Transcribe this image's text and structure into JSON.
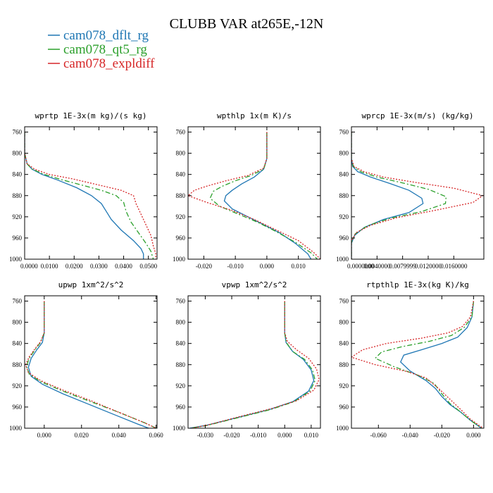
{
  "title": "CLUBB VAR at265E,-12N",
  "legend": [
    {
      "label": "cam078_dflt_rg",
      "color": "#1f77b4",
      "dash": "solid"
    },
    {
      "label": "cam078_qt5_rg",
      "color": "#2ca02c",
      "dash": "dashdot"
    },
    {
      "label": "cam078_expldiff",
      "color": "#d62728",
      "dash": "dotted"
    }
  ],
  "chart_data": [
    {
      "type": "line",
      "title": "wprtp  1E-3x(m kg)/(s kg)",
      "xlim": [
        0,
        0.0535
      ],
      "ylim": [
        750,
        1000
      ],
      "y_inverted": true,
      "xticks": [
        0,
        0.01,
        0.02,
        0.03,
        0.04,
        0.05
      ],
      "xtick_labels": [
        "0.0000",
        "0.0100",
        "0.0200",
        "0.0300",
        "0.0400",
        "0.0500"
      ],
      "yticks": [
        760,
        800,
        840,
        880,
        920,
        960,
        1000
      ],
      "ytick_labels": [
        "760",
        "800",
        "840",
        "880",
        "920",
        "960",
        "1000"
      ],
      "series": [
        {
          "name": "cam078_dflt_rg",
          "x": [
            0,
            0,
            0.001,
            0.003,
            0.007,
            0.013,
            0.021,
            0.027,
            0.031,
            0.033,
            0.035,
            0.039,
            0.044,
            0.047,
            0.048,
            0.048
          ],
          "y": [
            760,
            800,
            820,
            830,
            840,
            850,
            865,
            880,
            895,
            910,
            925,
            945,
            965,
            980,
            990,
            1000
          ]
        },
        {
          "name": "cam078_qt5_rg",
          "x": [
            0,
            0,
            0.001,
            0.003,
            0.008,
            0.015,
            0.023,
            0.031,
            0.037,
            0.04,
            0.041,
            0.043,
            0.046,
            0.049,
            0.051,
            0.052
          ],
          "y": [
            760,
            800,
            820,
            830,
            840,
            850,
            860,
            870,
            880,
            893,
            910,
            930,
            950,
            970,
            985,
            1000
          ]
        },
        {
          "name": "cam078_expldiff",
          "x": [
            0,
            0,
            0.001,
            0.004,
            0.01,
            0.019,
            0.03,
            0.039,
            0.044,
            0.045,
            0.047,
            0.049,
            0.051,
            0.052,
            0.053,
            0.053
          ],
          "y": [
            760,
            800,
            820,
            830,
            840,
            848,
            860,
            870,
            880,
            895,
            915,
            935,
            955,
            975,
            990,
            1000
          ]
        }
      ]
    },
    {
      "type": "line",
      "title": "wpthlp  1x(m K)/s",
      "xlim": [
        -0.025,
        0.017
      ],
      "ylim": [
        750,
        1000
      ],
      "y_inverted": true,
      "xticks": [
        -0.02,
        -0.01,
        0,
        0.01
      ],
      "xtick_labels": [
        "-0.020",
        "-0.010",
        "0.000",
        "0.010"
      ],
      "yticks": [
        760,
        800,
        840,
        880,
        920,
        960,
        1000
      ],
      "ytick_labels": [
        "760",
        "800",
        "840",
        "880",
        "920",
        "960",
        "1000"
      ],
      "series": [
        {
          "name": "cam078_dflt_rg",
          "x": [
            0,
            0,
            -0.001,
            -0.004,
            -0.008,
            -0.011,
            -0.013,
            -0.0135,
            -0.011,
            -0.006,
            -0.001,
            0.004,
            0.009,
            0.013,
            0.014
          ],
          "y": [
            760,
            810,
            830,
            845,
            858,
            870,
            880,
            890,
            905,
            920,
            935,
            950,
            970,
            990,
            1000
          ]
        },
        {
          "name": "cam078_qt5_rg",
          "x": [
            0,
            0,
            -0.001,
            -0.005,
            -0.01,
            -0.014,
            -0.017,
            -0.018,
            -0.015,
            -0.009,
            -0.003,
            0.003,
            0.009,
            0.014,
            0.016
          ],
          "y": [
            760,
            810,
            830,
            842,
            852,
            862,
            872,
            885,
            900,
            915,
            930,
            948,
            968,
            988,
            1000
          ]
        },
        {
          "name": "cam078_expldiff",
          "x": [
            0,
            0,
            -0.001,
            -0.006,
            -0.013,
            -0.019,
            -0.023,
            -0.025,
            -0.019,
            -0.011,
            -0.004,
            0.003,
            0.01,
            0.015,
            0.017
          ],
          "y": [
            760,
            810,
            828,
            842,
            852,
            862,
            870,
            880,
            893,
            908,
            925,
            945,
            965,
            988,
            1000
          ]
        }
      ]
    },
    {
      "type": "line",
      "title": "wprcp  1E-3x(m/s) (kg/kg)",
      "xlim": [
        0,
        0.0207
      ],
      "ylim": [
        750,
        1000
      ],
      "y_inverted": true,
      "xticks": [
        0,
        0.004,
        0.008,
        0.012,
        0.016
      ],
      "xtick_labels": [
        "0.0000000",
        "0.0040000",
        "0.0079999",
        "0.0120000",
        "0.0160000"
      ],
      "yticks": [
        760,
        800,
        840,
        880,
        920,
        960,
        1000
      ],
      "ytick_labels": [
        "760",
        "800",
        "840",
        "880",
        "920",
        "960",
        "1000"
      ],
      "series": [
        {
          "name": "cam078_dflt_rg",
          "x": [
            0,
            0,
            0.0002,
            0.001,
            0.003,
            0.006,
            0.009,
            0.011,
            0.0112,
            0.009,
            0.005,
            0.002,
            0.0005,
            0,
            0
          ],
          "y": [
            760,
            810,
            825,
            835,
            845,
            857,
            870,
            885,
            895,
            912,
            925,
            940,
            955,
            970,
            1000
          ]
        },
        {
          "name": "cam078_qt5_rg",
          "x": [
            0,
            0,
            0.0003,
            0.0015,
            0.004,
            0.008,
            0.012,
            0.0148,
            0.0147,
            0.011,
            0.006,
            0.0025,
            0.0006,
            0,
            0
          ],
          "y": [
            760,
            810,
            825,
            835,
            845,
            856,
            868,
            882,
            895,
            910,
            923,
            937,
            952,
            968,
            1000
          ]
        },
        {
          "name": "cam078_expldiff",
          "x": [
            0,
            0,
            0.0004,
            0.002,
            0.005,
            0.01,
            0.016,
            0.0205,
            0.019,
            0.013,
            0.007,
            0.003,
            0.0007,
            0,
            0
          ],
          "y": [
            760,
            810,
            825,
            835,
            845,
            855,
            866,
            880,
            893,
            908,
            922,
            936,
            950,
            966,
            1000
          ]
        }
      ]
    },
    {
      "type": "line",
      "title": "upwp  1xm^2/s^2",
      "xlim": [
        -0.0105,
        0.0605
      ],
      "ylim": [
        750,
        1000
      ],
      "y_inverted": true,
      "xticks": [
        0,
        0.02,
        0.04,
        0.06
      ],
      "xtick_labels": [
        "0.000",
        "0.020",
        "0.040",
        "0.060"
      ],
      "yticks": [
        760,
        800,
        840,
        880,
        920,
        960,
        1000
      ],
      "ytick_labels": [
        "760",
        "800",
        "840",
        "880",
        "920",
        "960",
        "1000"
      ],
      "series": [
        {
          "name": "cam078_dflt_rg",
          "x": [
            0,
            0,
            -0.001,
            -0.004,
            -0.007,
            -0.0085,
            -0.007,
            -0.001,
            0.01,
            0.024,
            0.038,
            0.05,
            0.056
          ],
          "y": [
            760,
            820,
            838,
            852,
            868,
            885,
            902,
            917,
            935,
            955,
            975,
            992,
            1000
          ]
        },
        {
          "name": "cam078_qt5_rg",
          "x": [
            0,
            0,
            -0.002,
            -0.005,
            -0.008,
            -0.0095,
            -0.008,
            -0.002,
            0.01,
            0.025,
            0.04,
            0.054,
            0.06
          ],
          "y": [
            760,
            820,
            838,
            852,
            868,
            883,
            898,
            912,
            930,
            950,
            970,
            990,
            1000
          ]
        },
        {
          "name": "cam078_expldiff",
          "x": [
            0,
            0,
            -0.002,
            -0.005,
            -0.008,
            -0.01,
            -0.0085,
            -0.002,
            0.01,
            0.025,
            0.04,
            0.054,
            0.06
          ],
          "y": [
            760,
            820,
            837,
            850,
            865,
            880,
            895,
            910,
            928,
            948,
            970,
            990,
            1000
          ]
        }
      ]
    },
    {
      "type": "line",
      "title": "vpwp  1xm^2/s^2",
      "xlim": [
        -0.0365,
        0.0135
      ],
      "ylim": [
        750,
        1000
      ],
      "y_inverted": true,
      "xticks": [
        -0.03,
        -0.02,
        -0.01,
        0,
        0.01
      ],
      "xtick_labels": [
        "-0.030",
        "-0.020",
        "-0.010",
        "0.000",
        "0.010"
      ],
      "yticks": [
        760,
        800,
        840,
        880,
        920,
        960,
        1000
      ],
      "ytick_labels": [
        "760",
        "800",
        "840",
        "880",
        "920",
        "960",
        "1000"
      ],
      "series": [
        {
          "name": "cam078_dflt_rg",
          "x": [
            0,
            0,
            0.0005,
            0.003,
            0.007,
            0.01,
            0.011,
            0.009,
            0.003,
            -0.006,
            -0.018,
            -0.03,
            -0.036
          ],
          "y": [
            760,
            820,
            838,
            855,
            870,
            890,
            910,
            930,
            950,
            965,
            980,
            995,
            1000
          ]
        },
        {
          "name": "cam078_qt5_rg",
          "x": [
            0,
            0,
            0.0006,
            0.003,
            0.0075,
            0.0105,
            0.0115,
            0.0095,
            0.0035,
            -0.0055,
            -0.0175,
            -0.0295,
            -0.0355
          ],
          "y": [
            760,
            820,
            838,
            855,
            870,
            890,
            910,
            930,
            950,
            965,
            980,
            995,
            1000
          ]
        },
        {
          "name": "cam078_expldiff",
          "x": [
            0,
            0,
            0.001,
            0.0045,
            0.009,
            0.012,
            0.013,
            0.011,
            0.0045,
            -0.005,
            -0.017,
            -0.029,
            -0.035
          ],
          "y": [
            760,
            820,
            836,
            852,
            868,
            888,
            908,
            928,
            948,
            963,
            978,
            994,
            1000
          ]
        }
      ]
    },
    {
      "type": "line",
      "title": "rtpthlp  1E-3x(kg K)/kg",
      "xlim": [
        -0.077,
        0.0065
      ],
      "ylim": [
        750,
        1000
      ],
      "y_inverted": true,
      "xticks": [
        -0.06,
        -0.04,
        -0.02,
        0
      ],
      "xtick_labels": [
        "-0.060",
        "-0.040",
        "-0.020",
        "0.000"
      ],
      "yticks": [
        760,
        800,
        840,
        880,
        920,
        960,
        1000
      ],
      "ytick_labels": [
        "760",
        "800",
        "840",
        "880",
        "920",
        "960",
        "1000"
      ],
      "series": [
        {
          "name": "cam078_dflt_rg",
          "x": [
            0,
            -0.001,
            -0.004,
            -0.01,
            -0.02,
            -0.033,
            -0.044,
            -0.046,
            -0.04,
            -0.03,
            -0.024,
            -0.02,
            -0.015,
            -0.008,
            -0.002,
            0.005
          ],
          "y": [
            760,
            790,
            810,
            828,
            840,
            852,
            862,
            875,
            892,
            910,
            925,
            940,
            955,
            970,
            985,
            1000
          ]
        },
        {
          "name": "cam078_qt5_rg",
          "x": [
            0,
            -0.001,
            -0.006,
            -0.014,
            -0.028,
            -0.045,
            -0.058,
            -0.062,
            -0.05,
            -0.035,
            -0.025,
            -0.02,
            -0.015,
            -0.008,
            -0.002,
            0.005
          ],
          "y": [
            760,
            790,
            810,
            825,
            836,
            846,
            856,
            868,
            884,
            900,
            915,
            935,
            953,
            970,
            985,
            1000
          ]
        },
        {
          "name": "cam078_expldiff",
          "x": [
            0,
            -0.002,
            -0.007,
            -0.016,
            -0.033,
            -0.055,
            -0.07,
            -0.077,
            -0.062,
            -0.042,
            -0.03,
            -0.022,
            -0.015,
            -0.008,
            -0.002,
            0.006
          ],
          "y": [
            760,
            790,
            808,
            820,
            830,
            840,
            852,
            866,
            880,
            893,
            905,
            925,
            945,
            965,
            983,
            1000
          ]
        }
      ]
    }
  ]
}
